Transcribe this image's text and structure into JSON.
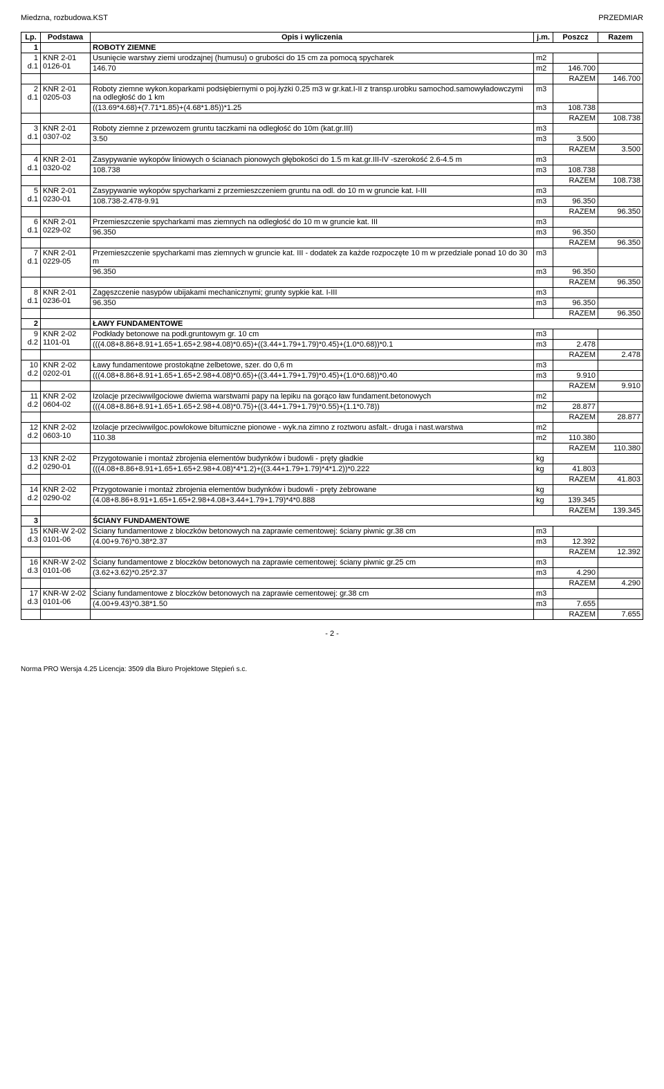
{
  "doc": {
    "left_header": "Miedzna, rozbudowa.KST",
    "right_header": "PRZEDMIAR",
    "page_label": "- 2 -",
    "footer": "Norma PRO Wersja 4.25 Licencja: 3509 dla Biuro Projektowe Stępień s.c."
  },
  "head": {
    "lp": "Lp.",
    "podstawa": "Podstawa",
    "opis": "Opis i wyliczenia",
    "jm": "j.m.",
    "poszcz": "Poszcz",
    "razem": "Razem"
  },
  "s1": {
    "num": "1",
    "title": "ROBOTY ZIEMNE"
  },
  "r1": {
    "lp": "1\nd.1",
    "pod": "KNR 2-01\n0126-01",
    "opis": "Usunięcie warstwy ziemi urodzajnej (humusu) o grubości do 15 cm za pomocą spycharek",
    "jm": "m2",
    "calc": "146.70",
    "jm2": "m2",
    "val": "146.700",
    "raz_l": "RAZEM",
    "raz_v": "146.700"
  },
  "r2": {
    "lp": "2\nd.1",
    "pod": "KNR 2-01\n0205-03",
    "opis": "Roboty ziemne wykon.koparkami podsiębiernymi o poj.łyżki 0.25 m3 w gr.kat.I-II z transp.urobku samochod.samowyładowczymi na odległość do 1 km",
    "jm": "m3",
    "calc": "((13.69*4.68)+(7.71*1.85)+(4.68*1.85))*1.25",
    "jm2": "m3",
    "val": "108.738",
    "raz_l": "RAZEM",
    "raz_v": "108.738"
  },
  "r3": {
    "lp": "3\nd.1",
    "pod": "KNR 2-01\n0307-02",
    "opis": "Roboty ziemne z przewozem gruntu taczkami na odległość do 10m (kat.gr.III)",
    "jm": "m3",
    "calc": "3.50",
    "jm2": "m3",
    "val": "3.500",
    "raz_l": "RAZEM",
    "raz_v": "3.500"
  },
  "r4": {
    "lp": "4\nd.1",
    "pod": "KNR 2-01\n0320-02",
    "opis": "Zasypywanie wykopów liniowych o ścianach pionowych głębokości do 1.5 m kat.gr.III-IV -szerokość 2.6-4.5 m",
    "jm": "m3",
    "calc": "108.738",
    "jm2": "m3",
    "val": "108.738",
    "raz_l": "RAZEM",
    "raz_v": "108.738"
  },
  "r5": {
    "lp": "5\nd.1",
    "pod": "KNR 2-01\n0230-01",
    "opis": "Zasypywanie wykopów spycharkami z przemieszczeniem gruntu na odl. do 10 m w gruncie kat. I-III",
    "jm": "m3",
    "calc": "108.738-2.478-9.91",
    "jm2": "m3",
    "val": "96.350",
    "raz_l": "RAZEM",
    "raz_v": "96.350"
  },
  "r6": {
    "lp": "6\nd.1",
    "pod": "KNR 2-01\n0229-02",
    "opis": "Przemieszczenie spycharkami mas ziemnych na odległość do 10 m w gruncie kat. III",
    "jm": "m3",
    "calc": "96.350",
    "jm2": "m3",
    "val": "96.350",
    "raz_l": "RAZEM",
    "raz_v": "96.350"
  },
  "r7": {
    "lp": "7\nd.1",
    "pod": "KNR 2-01\n0229-05",
    "opis": "Przemieszczenie spycharkami mas ziemnych w gruncie kat. III - dodatek za każde rozpoczęte 10 m w przedziale ponad 10 do 30 m",
    "jm": "m3",
    "calc": "96.350",
    "jm2": "m3",
    "val": "96.350",
    "raz_l": "RAZEM",
    "raz_v": "96.350"
  },
  "r8": {
    "lp": "8\nd.1",
    "pod": "KNR 2-01\n0236-01",
    "opis": "Zagęszczenie nasypów ubijakami mechanicznymi; grunty sypkie kat. I-III",
    "jm": "m3",
    "calc": "96.350",
    "jm2": "m3",
    "val": "96.350",
    "raz_l": "RAZEM",
    "raz_v": "96.350"
  },
  "s2": {
    "num": "2",
    "title": "ŁAWY FUNDAMENTOWE"
  },
  "r9": {
    "lp": "9\nd.2",
    "pod": "KNR 2-02\n1101-01",
    "opis": "Podkłady betonowe na podł.gruntowym gr. 10 cm",
    "jm": "m3",
    "calc": "(((4.08+8.86+8.91+1.65+1.65+2.98+4.08)*0.65)+((3.44+1.79+1.79)*0.45)+(1.0*0.68))*0.1",
    "jm2": "m3",
    "val": "2.478",
    "raz_l": "RAZEM",
    "raz_v": "2.478"
  },
  "r10": {
    "lp": "10\nd.2",
    "pod": "KNR 2-02\n0202-01",
    "opis": "Ławy fundamentowe prostokątne żelbetowe, szer. do 0,6 m",
    "jm": "m3",
    "calc": "(((4.08+8.86+8.91+1.65+1.65+2.98+4.08)*0.65)+((3.44+1.79+1.79)*0.45)+(1.0*0.68))*0.40",
    "jm2": "m3",
    "val": "9.910",
    "raz_l": "RAZEM",
    "raz_v": "9.910"
  },
  "r11": {
    "lp": "11\nd.2",
    "pod": "KNR 2-02\n0604-02",
    "opis": "Izolacje przeciwwilgociowe dwiema warstwami papy na lepiku na gorąco ław fundament.betonowych",
    "jm": "m2",
    "calc": "(((4.08+8.86+8.91+1.65+1.65+2.98+4.08)*0.75)+((3.44+1.79+1.79)*0.55)+(1.1*0.78))",
    "jm2": "m2",
    "val": "28.877",
    "raz_l": "RAZEM",
    "raz_v": "28.877"
  },
  "r12": {
    "lp": "12\nd.2",
    "pod": "KNR 2-02\n0603-10",
    "opis": "Izolacje przeciwwilgoc.powlokowe bitumiczne pionowe - wyk.na zimno z roztworu asfalt.- druga i nast.warstwa",
    "jm": "m2",
    "calc": "110.38",
    "jm2": "m2",
    "val": "110.380",
    "raz_l": "RAZEM",
    "raz_v": "110.380"
  },
  "r13": {
    "lp": "13\nd.2",
    "pod": "KNR 2-02\n0290-01",
    "opis": "Przygotowanie i montaż zbrojenia elementów budynków i budowli - pręty gładkie",
    "jm": "kg",
    "calc": "(((4.08+8.86+8.91+1.65+1.65+2.98+4.08)*4*1.2)+((3.44+1.79+1.79)*4*1.2))*0.222",
    "jm2": "kg",
    "val": "41.803",
    "raz_l": "RAZEM",
    "raz_v": "41.803"
  },
  "r14": {
    "lp": "14\nd.2",
    "pod": "KNR 2-02\n0290-02",
    "opis": "Przygotowanie i montaż zbrojenia elementów budynków i budowli - pręty żebrowane",
    "jm": "kg",
    "calc": "(4.08+8.86+8.91+1.65+1.65+2.98+4.08+3.44+1.79+1.79)*4*0.888",
    "jm2": "kg",
    "val": "139.345",
    "raz_l": "RAZEM",
    "raz_v": "139.345"
  },
  "s3": {
    "num": "3",
    "title": "ŚCIANY FUNDAMENTOWE"
  },
  "r15": {
    "lp": "15\nd.3",
    "pod": "KNR-W 2-02\n0101-06",
    "opis": "Ściany fundamentowe z bloczków betonowych na zaprawie cementowej: ściany piwnic gr.38 cm",
    "jm": "m3",
    "calc": "(4.00+9.76)*0.38*2.37",
    "jm2": "m3",
    "val": "12.392",
    "raz_l": "RAZEM",
    "raz_v": "12.392"
  },
  "r16": {
    "lp": "16\nd.3",
    "pod": "KNR-W 2-02\n0101-06",
    "opis": "Ściany fundamentowe z bloczków betonowych na zaprawie cementowej: ściany piwnic gr.25 cm",
    "jm": "m3",
    "calc": "(3.62+3.62)*0.25*2.37",
    "jm2": "m3",
    "val": "4.290",
    "raz_l": "RAZEM",
    "raz_v": "4.290"
  },
  "r17": {
    "lp": "17\nd.3",
    "pod": "KNR-W 2-02\n0101-06",
    "opis": "Ściany fundamentowe z bloczków betonowych na zaprawie cementowej: gr.38 cm",
    "jm": "m3",
    "calc": "(4.00+9.43)*0.38*1.50",
    "jm2": "m3",
    "val": "7.655",
    "raz_l": "RAZEM",
    "raz_v": "7.655"
  }
}
